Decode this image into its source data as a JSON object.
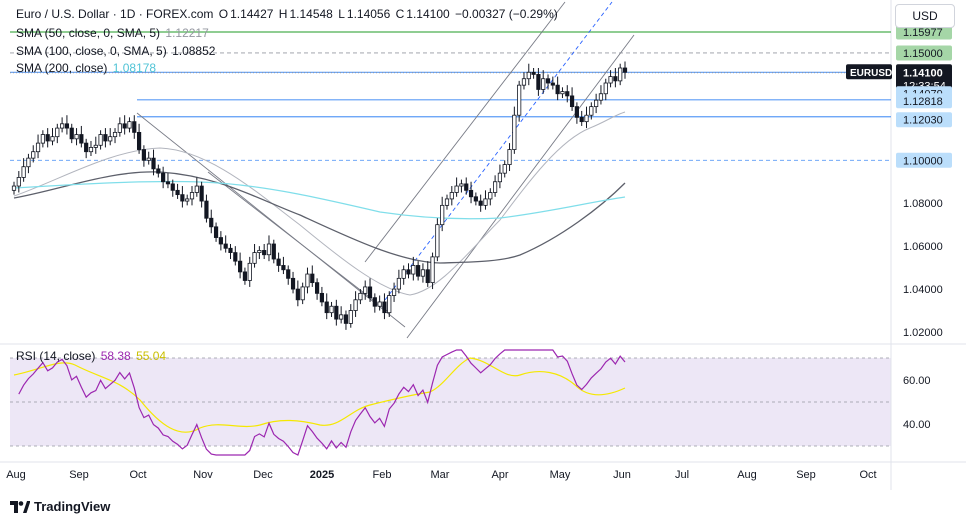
{
  "header": {
    "symbol_title": "Euro / U.S. Dollar · 1D · FOREX.com",
    "open_label": "O",
    "open": "1.14427",
    "high_label": "H",
    "high": "1.14548",
    "low_label": "L",
    "low": "1.14056",
    "close_label": "C",
    "close": "1.14100",
    "change": "−0.00327 (−0.29%)"
  },
  "indicators": {
    "sma50_label": "SMA (50, close, 0, SMA, 5)",
    "sma50_value": "1.12217",
    "sma100_label": "SMA (100, close, 0, SMA, 5)",
    "sma100_value": "1.08852",
    "sma200_label": "SMA (200, close)",
    "sma200_value": "1.08178",
    "rsi_label": "RSI (14, close)",
    "rsi_value": "58.38",
    "rsi_ma_value": "55.04"
  },
  "toolbar": {
    "currency": "USD"
  },
  "price_badges": {
    "top_partial": "1.15977",
    "r1": "1.15000",
    "symbol": "EURUSD",
    "last": "1.14100",
    "countdown": "12:33:54",
    "s1": "1.14079",
    "s2": "1.12818",
    "s3": "1.12030",
    "s4": "1.10000"
  },
  "branding": {
    "name": "TradingView"
  },
  "colors": {
    "candle": "#131722",
    "sma50": "#b2b5be",
    "sma100": "#5d606b",
    "sma200": "#80deea",
    "rsi": "#9c27b0",
    "rsi_ma": "#f5e800",
    "rsi_band": "#ede7f6",
    "level_blue": "#5b9cf6",
    "level_green": "#4caf50",
    "badge_blue": "#bbdefb"
  },
  "chart_data": {
    "type": "candlestick",
    "y_axis_ticks": [
      "1.02000",
      "1.04000",
      "1.06000",
      "1.08000"
    ],
    "ylim": [
      1.014,
      1.168
    ],
    "rsi_axis_ticks": [
      "60.00",
      "40.00"
    ],
    "rsi_ylim": [
      22,
      82
    ],
    "x_ticks": [
      "Aug",
      "Sep",
      "Oct",
      "Nov",
      "Dec",
      "2025",
      "Feb",
      "Mar",
      "Apr",
      "May",
      "Jun",
      "Jul",
      "Aug",
      "Sep",
      "Oct"
    ],
    "horizontal_levels": [
      {
        "value": 1.15977,
        "style": "solid",
        "color": "green"
      },
      {
        "value": 1.15,
        "style": "dashed",
        "color": "gray"
      },
      {
        "value": 1.141,
        "style": "solid",
        "color": "blue"
      },
      {
        "value": 1.14079,
        "style": "dotted",
        "color": "gray"
      },
      {
        "value": 1.12818,
        "style": "solid",
        "color": "blue"
      },
      {
        "value": 1.1203,
        "style": "solid",
        "color": "blue"
      },
      {
        "value": 1.1,
        "style": "dashed",
        "color": "blue"
      }
    ],
    "closes": [
      1.088,
      1.092,
      1.097,
      1.101,
      1.104,
      1.108,
      1.112,
      1.109,
      1.111,
      1.115,
      1.117,
      1.115,
      1.11,
      1.112,
      1.108,
      1.104,
      1.106,
      1.107,
      1.112,
      1.109,
      1.111,
      1.113,
      1.117,
      1.115,
      1.118,
      1.113,
      1.105,
      1.1,
      1.101,
      1.096,
      1.094,
      1.09,
      1.089,
      1.086,
      1.084,
      1.081,
      1.082,
      1.085,
      1.088,
      1.081,
      1.073,
      1.069,
      1.064,
      1.061,
      1.059,
      1.057,
      1.053,
      1.048,
      1.044,
      1.052,
      1.057,
      1.058,
      1.056,
      1.061,
      1.054,
      1.051,
      1.049,
      1.045,
      1.04,
      1.035,
      1.041,
      1.047,
      1.043,
      1.038,
      1.034,
      1.029,
      1.032,
      1.026,
      1.028,
      1.024,
      1.03,
      1.035,
      1.038,
      1.041,
      1.036,
      1.032,
      1.034,
      1.029,
      1.037,
      1.04,
      1.045,
      1.049,
      1.047,
      1.051,
      1.046,
      1.049,
      1.043,
      1.055,
      1.07,
      1.079,
      1.082,
      1.085,
      1.088,
      1.089,
      1.086,
      1.083,
      1.081,
      1.079,
      1.082,
      1.085,
      1.09,
      1.094,
      1.098,
      1.105,
      1.121,
      1.135,
      1.138,
      1.141,
      1.14,
      1.133,
      1.138,
      1.136,
      1.135,
      1.131,
      1.132,
      1.13,
      1.125,
      1.12,
      1.118,
      1.121,
      1.125,
      1.128,
      1.131,
      1.136,
      1.139,
      1.137,
      1.143,
      1.141
    ]
  }
}
